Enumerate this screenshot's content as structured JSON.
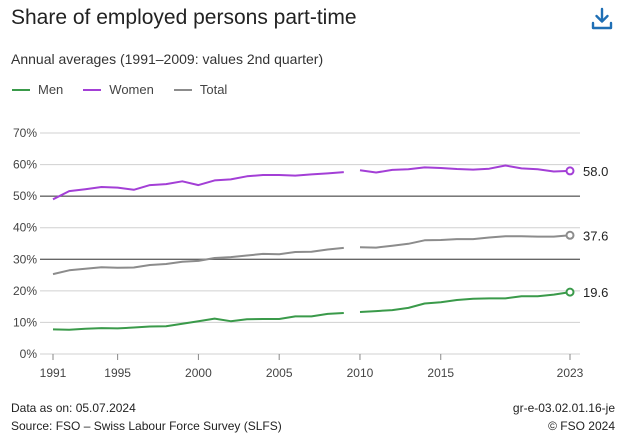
{
  "header": {
    "title": "Share of employed persons part-time",
    "subtitle": "Annual averages (1991–2009: values 2nd quarter)"
  },
  "download_icon": "download-icon",
  "colors": {
    "men": "#3a9a4a",
    "women": "#a33fd6",
    "total": "#8c8c8c"
  },
  "chart_data": {
    "type": "line",
    "title": "Share of employed persons part-time",
    "subtitle": "Annual averages (1991–2009: values 2nd quarter)",
    "x_ticks": [
      "1991",
      "1995",
      "2000",
      "2005",
      "2010",
      "2015",
      "2023"
    ],
    "y_ticks": [
      "0%",
      "10%",
      "20%",
      "30%",
      "40%",
      "50%",
      "60%",
      "70%"
    ],
    "xlim": [
      1991,
      2023
    ],
    "ylim": [
      0,
      70
    ],
    "grid": true,
    "legend_position": "top-left",
    "break_between": [
      2009,
      2010
    ],
    "x": [
      1991,
      1992,
      1993,
      1994,
      1995,
      1996,
      1997,
      1998,
      1999,
      2000,
      2001,
      2002,
      2003,
      2004,
      2005,
      2006,
      2007,
      2008,
      2009,
      2010,
      2011,
      2012,
      2013,
      2014,
      2015,
      2016,
      2017,
      2018,
      2019,
      2020,
      2021,
      2022,
      2023
    ],
    "series": [
      {
        "name": "Men",
        "values": [
          7.8,
          7.7,
          8.0,
          8.2,
          8.1,
          8.4,
          8.7,
          8.8,
          9.6,
          10.4,
          11.2,
          10.4,
          11.0,
          11.1,
          11.1,
          11.9,
          11.9,
          12.7,
          13.0,
          13.3,
          13.6,
          13.9,
          14.6,
          16.0,
          16.4,
          17.1,
          17.5,
          17.6,
          17.6,
          18.3,
          18.3,
          18.8,
          19.6
        ]
      },
      {
        "name": "Women",
        "values": [
          49.0,
          51.6,
          52.2,
          52.9,
          52.7,
          52.0,
          53.5,
          53.8,
          54.7,
          53.5,
          55.0,
          55.3,
          56.3,
          56.7,
          56.7,
          56.5,
          56.9,
          57.2,
          57.6,
          58.2,
          57.5,
          58.3,
          58.5,
          59.1,
          58.9,
          58.6,
          58.4,
          58.7,
          59.7,
          58.8,
          58.5,
          57.8,
          58.0
        ]
      },
      {
        "name": "Total",
        "values": [
          25.3,
          26.5,
          27.0,
          27.5,
          27.3,
          27.4,
          28.2,
          28.5,
          29.2,
          29.5,
          30.4,
          30.7,
          31.2,
          31.7,
          31.6,
          32.3,
          32.4,
          33.1,
          33.6,
          33.8,
          33.7,
          34.3,
          34.9,
          36.0,
          36.1,
          36.4,
          36.4,
          36.9,
          37.3,
          37.3,
          37.2,
          37.2,
          37.6
        ]
      }
    ],
    "end_labels": {
      "women": "58.0",
      "total": "37.6",
      "men": "19.6"
    }
  },
  "legend": {
    "men": "Men",
    "women": "Women",
    "total": "Total"
  },
  "footer": {
    "data_as_on": "Data as on: 05.07.2024",
    "source": "Source: FSO – Swiss Labour Force Survey (SLFS)",
    "code": "gr-e-03.02.01.16-je",
    "copyright": "© FSO 2024"
  }
}
